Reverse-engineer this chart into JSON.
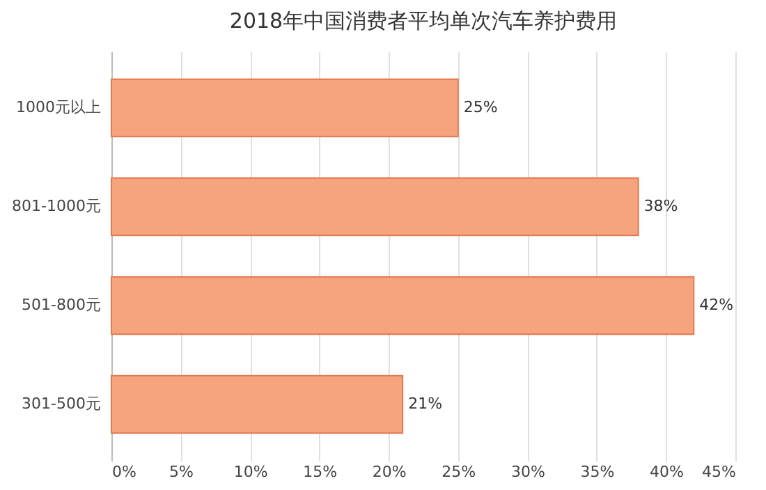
{
  "chart_data": {
    "type": "bar",
    "orientation": "horizontal",
    "title": "2018年中国消费者平均单次汽车养护费用",
    "categories": [
      "1000元以上",
      "801-1000元",
      "501-800元",
      "301-500元"
    ],
    "values": [
      25,
      38,
      42,
      21
    ],
    "value_labels": [
      "25%",
      "38%",
      "42%",
      "21%"
    ],
    "color": "#f5a47e",
    "xlim": [
      0,
      45
    ],
    "xticks": [
      {
        "value": 0,
        "label": "0%"
      },
      {
        "value": 5,
        "label": "5%"
      },
      {
        "value": 10,
        "label": "10%"
      },
      {
        "value": 15,
        "label": "15%"
      },
      {
        "value": 20,
        "label": "20%"
      },
      {
        "value": 25,
        "label": "25%"
      },
      {
        "value": 30,
        "label": "30%"
      },
      {
        "value": 35,
        "label": "35%"
      },
      {
        "value": 40,
        "label": "40%"
      },
      {
        "value": 45,
        "label": "45%"
      }
    ],
    "grid": "x"
  }
}
